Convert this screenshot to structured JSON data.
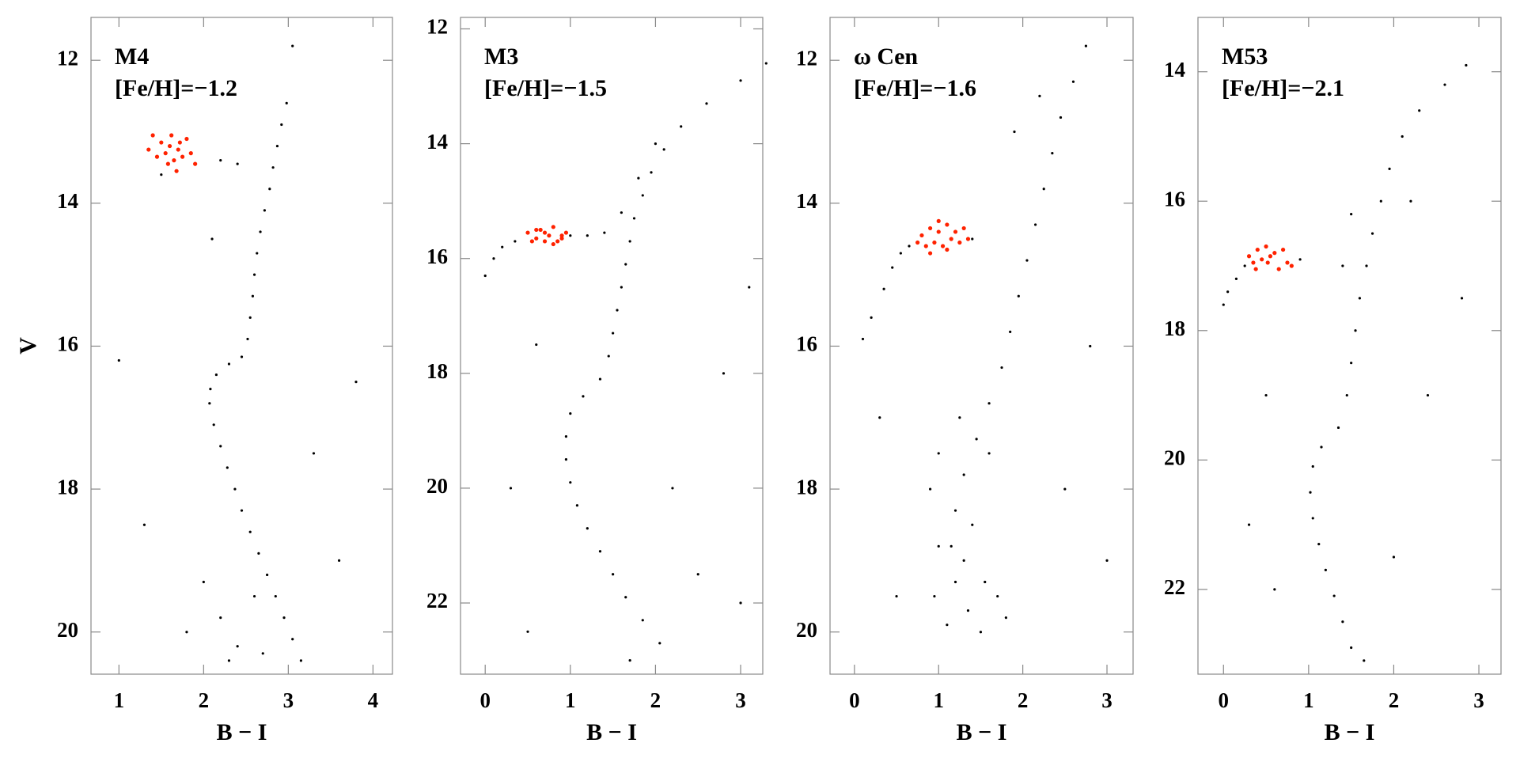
{
  "chart_data": [
    {
      "type": "scatter",
      "title": "M4",
      "subtitle": "[Fe/H]=−1.2",
      "xlabel": "B − I",
      "ylabel": "V",
      "xlim": [
        0.67,
        4.23
      ],
      "ylim": [
        20.59,
        11.4
      ],
      "xticks": [
        1,
        2,
        3,
        4
      ],
      "yticks": [
        12,
        14,
        16,
        18,
        20
      ],
      "series": [
        {
          "color": "#000000",
          "x": [
            3.15,
            3.05,
            2.95,
            2.85,
            2.75,
            2.65,
            2.55,
            2.45,
            2.37,
            2.28,
            2.2,
            2.12,
            2.07,
            2.08,
            2.15,
            2.3,
            2.45,
            2.52,
            2.55,
            2.58,
            2.6,
            2.63,
            2.67,
            2.72,
            2.78,
            2.82,
            2.87,
            2.92,
            2.98,
            3.05,
            2.2,
            2.4,
            1.8,
            3.6,
            1.3,
            3.8,
            1.0,
            2.6,
            2.0,
            3.3,
            2.3,
            2.7,
            2.1,
            1.5,
            2.2,
            2.4
          ],
          "y": [
            20.4,
            20.1,
            19.8,
            19.5,
            19.2,
            18.9,
            18.6,
            18.3,
            18.0,
            17.7,
            17.4,
            17.1,
            16.8,
            16.6,
            16.4,
            16.25,
            16.15,
            15.9,
            15.6,
            15.3,
            15.0,
            14.7,
            14.4,
            14.1,
            13.8,
            13.5,
            13.2,
            12.9,
            12.6,
            11.8,
            19.8,
            20.2,
            20.0,
            19.0,
            18.5,
            16.5,
            16.2,
            19.5,
            19.3,
            17.5,
            20.4,
            20.3,
            14.5,
            13.6,
            13.4,
            13.45
          ]
        },
        {
          "color": "#ff2200",
          "x": [
            1.4,
            1.5,
            1.55,
            1.6,
            1.65,
            1.7,
            1.75,
            1.8,
            1.45,
            1.58,
            1.68,
            1.85,
            1.9,
            1.35,
            1.72,
            1.62
          ],
          "y": [
            13.05,
            13.15,
            13.3,
            13.2,
            13.4,
            13.25,
            13.35,
            13.1,
            13.35,
            13.45,
            13.55,
            13.3,
            13.45,
            13.25,
            13.15,
            13.05
          ]
        }
      ]
    },
    {
      "type": "scatter",
      "title": "M3",
      "subtitle": "[Fe/H]=−1.5",
      "xlabel": "B − I",
      "xlim": [
        -0.29,
        3.26
      ],
      "ylim": [
        23.24,
        11.8
      ],
      "xticks": [
        0,
        1,
        2,
        3
      ],
      "yticks": [
        12,
        14,
        16,
        18,
        20,
        22
      ],
      "series": [
        {
          "color": "#000000",
          "x": [
            3.3,
            3.0,
            2.6,
            2.3,
            2.1,
            1.95,
            1.85,
            1.75,
            1.7,
            1.65,
            1.6,
            1.55,
            1.5,
            1.45,
            1.35,
            1.15,
            1.0,
            0.95,
            0.95,
            1.0,
            1.08,
            1.2,
            1.35,
            1.5,
            1.65,
            1.85,
            2.05,
            0.0,
            0.1,
            0.2,
            0.35,
            1.0,
            1.2,
            1.4,
            1.6,
            1.8,
            2.0,
            2.8,
            0.3,
            2.5,
            3.0,
            0.5,
            1.7,
            2.2,
            3.1,
            0.6
          ],
          "y": [
            12.6,
            12.9,
            13.3,
            13.7,
            14.1,
            14.5,
            14.9,
            15.3,
            15.7,
            16.1,
            16.5,
            16.9,
            17.3,
            17.7,
            18.1,
            18.4,
            18.7,
            19.1,
            19.5,
            19.9,
            20.3,
            20.7,
            21.1,
            21.5,
            21.9,
            22.3,
            22.7,
            16.3,
            16.0,
            15.8,
            15.7,
            15.6,
            15.6,
            15.55,
            15.2,
            14.6,
            14.0,
            18.0,
            20.0,
            21.5,
            22.0,
            22.5,
            23.0,
            20.0,
            16.5,
            17.5
          ]
        },
        {
          "color": "#ff2200",
          "x": [
            0.5,
            0.6,
            0.65,
            0.7,
            0.75,
            0.8,
            0.85,
            0.9,
            0.95,
            0.55,
            0.7,
            0.8,
            0.9,
            0.6
          ],
          "y": [
            15.55,
            15.65,
            15.5,
            15.7,
            15.6,
            15.45,
            15.7,
            15.6,
            15.55,
            15.7,
            15.55,
            15.75,
            15.65,
            15.5
          ]
        }
      ]
    },
    {
      "type": "scatter",
      "title": "ω Cen",
      "subtitle": "[Fe/H]=−1.6",
      "xlabel": "B − I",
      "xlim": [
        -0.29,
        3.31
      ],
      "ylim": [
        20.59,
        11.4
      ],
      "xticks": [
        0,
        1,
        2,
        3
      ],
      "yticks": [
        12,
        14,
        16,
        18,
        20
      ],
      "series": [
        {
          "color": "#000000",
          "x": [
            2.75,
            2.6,
            2.45,
            2.35,
            2.25,
            2.15,
            2.05,
            1.95,
            1.85,
            1.75,
            1.6,
            1.45,
            1.3,
            1.2,
            1.15,
            1.2,
            1.35,
            1.5,
            0.9,
            1.0,
            0.95,
            1.7,
            1.8,
            1.1,
            1.4,
            1.6,
            1.0,
            1.3,
            1.55,
            1.25,
            0.1,
            0.2,
            0.35,
            0.45,
            0.55,
            0.65,
            1.4,
            0.3,
            2.5,
            2.8,
            0.5,
            3.0,
            2.2,
            1.9
          ],
          "y": [
            11.8,
            12.3,
            12.8,
            13.3,
            13.8,
            14.3,
            14.8,
            15.3,
            15.8,
            16.3,
            16.8,
            17.3,
            17.8,
            18.3,
            18.8,
            19.3,
            19.7,
            20.0,
            18.0,
            18.8,
            19.5,
            19.5,
            19.8,
            19.9,
            18.5,
            17.5,
            17.5,
            19.0,
            19.3,
            17.0,
            15.9,
            15.6,
            15.2,
            14.9,
            14.7,
            14.6,
            14.5,
            17.0,
            18.0,
            16.0,
            19.5,
            19.0,
            12.5,
            13.0
          ]
        },
        {
          "color": "#ff2200",
          "x": [
            0.8,
            0.85,
            0.9,
            0.95,
            1.0,
            1.05,
            1.1,
            1.15,
            1.2,
            1.25,
            1.3,
            0.9,
            1.0,
            1.1,
            1.35,
            0.75
          ],
          "y": [
            14.45,
            14.6,
            14.35,
            14.55,
            14.4,
            14.6,
            14.3,
            14.5,
            14.4,
            14.55,
            14.35,
            14.7,
            14.25,
            14.65,
            14.5,
            14.55
          ]
        }
      ]
    },
    {
      "type": "scatter",
      "title": "M53",
      "subtitle": "[Fe/H]=−2.1",
      "xlabel": "B − I",
      "xlim": [
        -0.3,
        3.26
      ],
      "ylim": [
        23.31,
        13.16
      ],
      "xticks": [
        0,
        1,
        2,
        3
      ],
      "yticks": [
        14,
        16,
        18,
        20,
        22
      ],
      "series": [
        {
          "color": "#000000",
          "x": [
            2.85,
            2.6,
            2.3,
            2.1,
            1.95,
            1.85,
            1.75,
            1.68,
            1.6,
            1.55,
            1.5,
            1.45,
            1.35,
            1.15,
            1.05,
            1.02,
            1.05,
            1.12,
            1.2,
            1.3,
            1.4,
            1.5,
            1.65,
            0.0,
            0.05,
            0.15,
            0.25,
            0.9,
            1.4,
            1.5,
            0.5,
            2.4,
            2.0,
            0.6,
            2.8,
            2.2,
            0.3
          ],
          "y": [
            13.9,
            14.2,
            14.6,
            15.0,
            15.5,
            16.0,
            16.5,
            17.0,
            17.5,
            18.0,
            18.5,
            19.0,
            19.5,
            19.8,
            20.1,
            20.5,
            20.9,
            21.3,
            21.7,
            22.1,
            22.5,
            22.9,
            23.1,
            17.6,
            17.4,
            17.2,
            17.0,
            16.9,
            17.0,
            16.2,
            19.0,
            19.0,
            21.5,
            22.0,
            17.5,
            16.0,
            21.0
          ]
        },
        {
          "color": "#ff2200",
          "x": [
            0.3,
            0.35,
            0.4,
            0.45,
            0.5,
            0.55,
            0.6,
            0.7,
            0.75,
            0.8,
            0.65,
            0.38,
            0.52
          ],
          "y": [
            16.85,
            16.95,
            16.75,
            16.9,
            16.7,
            16.85,
            16.8,
            16.75,
            16.95,
            17.0,
            17.05,
            17.05,
            16.95
          ]
        }
      ]
    }
  ]
}
